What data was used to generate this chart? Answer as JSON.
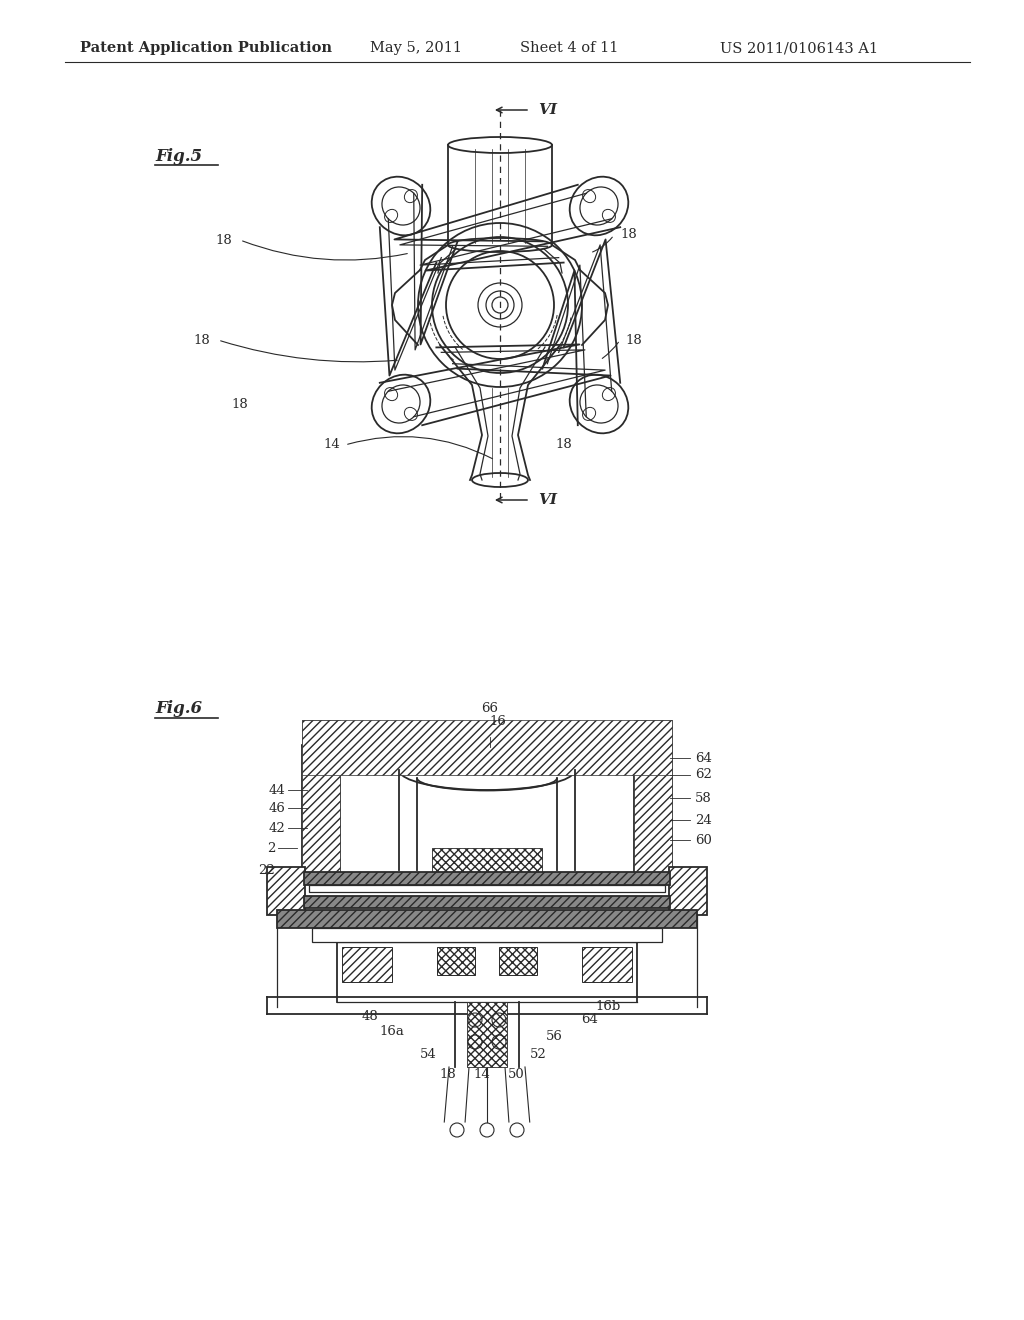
{
  "title": "Patent Application Publication",
  "date": "May 5, 2011",
  "sheet": "Sheet 4 of 11",
  "patent_num": "US 2011/0106143 A1",
  "fig5_label": "Fig.5",
  "fig6_label": "Fig.6",
  "background_color": "#ffffff",
  "line_color": "#2a2a2a",
  "header_fontsize": 10.5,
  "fig_label_fontsize": 12,
  "annotation_fontsize": 9.5
}
